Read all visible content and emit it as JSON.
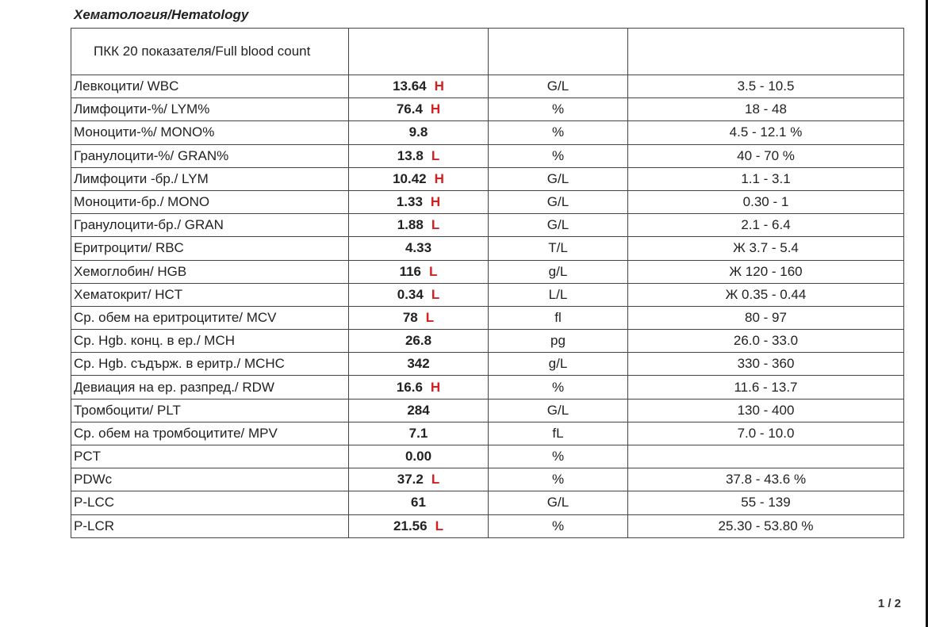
{
  "section_title": "Хематология/Hematology",
  "table_header": "ПКК 20 показателя/Full blood count",
  "rows": [
    {
      "name": "Левкоцити/ WBC",
      "value": "13.64",
      "flag": "H",
      "unit": "G/L",
      "ref": "3.5 - 10.5"
    },
    {
      "name": "Лимфоцити-%/ LYM%",
      "value": "76.4",
      "flag": "H",
      "unit": "%",
      "ref": "18 - 48"
    },
    {
      "name": "Моноцити-%/ MONO%",
      "value": "9.8",
      "flag": "",
      "unit": "%",
      "ref": "4.5 - 12.1 %"
    },
    {
      "name": "Гранулоцити-%/ GRAN%",
      "value": "13.8",
      "flag": "L",
      "unit": "%",
      "ref": "40 - 70 %"
    },
    {
      "name": "Лимфоцити -бр./ LYM",
      "value": "10.42",
      "flag": "H",
      "unit": "G/L",
      "ref": "1.1 - 3.1"
    },
    {
      "name": "Моноцити-бр./ MONO",
      "value": "1.33",
      "flag": "H",
      "unit": "G/L",
      "ref": "0.30 - 1"
    },
    {
      "name": "Гранулоцити-бр./ GRAN",
      "value": "1.88",
      "flag": "L",
      "unit": "G/L",
      "ref": "2.1 - 6.4"
    },
    {
      "name": "Еритроцити/ RBC",
      "value": "4.33",
      "flag": "",
      "unit": "T/L",
      "ref": "Ж 3.7 - 5.4"
    },
    {
      "name": "Хемоглобин/ HGB",
      "value": "116",
      "flag": "L",
      "unit": "g/L",
      "ref": "Ж 120 - 160"
    },
    {
      "name": "Хематокрит/ HCT",
      "value": "0.34",
      "flag": "L",
      "unit": "L/L",
      "ref": "Ж 0.35 - 0.44"
    },
    {
      "name": "Ср. обем на еритроцитите/ MCV",
      "value": "78",
      "flag": "L",
      "unit": "fl",
      "ref": "80 - 97"
    },
    {
      "name": "Ср. Hgb. конц. в ер./ MCH",
      "value": "26.8",
      "flag": "",
      "unit": "pg",
      "ref": "26.0 - 33.0"
    },
    {
      "name": "Ср. Hgb. съдърж. в еритр./ MCHC",
      "value": "342",
      "flag": "",
      "unit": "g/L",
      "ref": "330 - 360"
    },
    {
      "name": "Девиация на ер. разпред./ RDW",
      "value": "16.6",
      "flag": "H",
      "unit": "%",
      "ref": "11.6 - 13.7"
    },
    {
      "name": "Тромбоцити/ PLT",
      "value": "284",
      "flag": "",
      "unit": "G/L",
      "ref": "130 - 400"
    },
    {
      "name": "Ср. обем на тромбоцитите/ MPV",
      "value": "7.1",
      "flag": "",
      "unit": "fL",
      "ref": "7.0 - 10.0"
    },
    {
      "name": "PCT",
      "value": "0.00",
      "flag": "",
      "unit": "%",
      "ref": ""
    },
    {
      "name": "PDWc",
      "value": "37.2",
      "flag": "L",
      "unit": "%",
      "ref": "37.8 - 43.6 %"
    },
    {
      "name": "P-LCC",
      "value": "61",
      "flag": "",
      "unit": "G/L",
      "ref": "55 - 139"
    },
    {
      "name": "P-LCR",
      "value": "21.56",
      "flag": "L",
      "unit": "%",
      "ref": "25.30 - 53.80 %"
    }
  ],
  "flag_color": "#d42020",
  "page_number": "1 / 2"
}
